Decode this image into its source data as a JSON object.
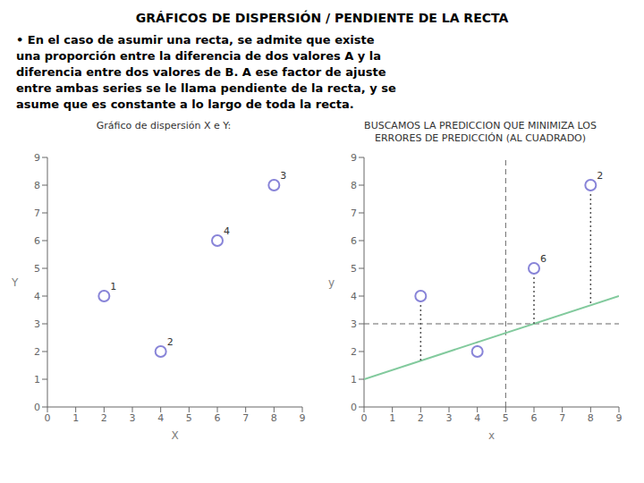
{
  "title": "GRÁFICOS DE DISPERSIÓN / PENDIENTE DE LA RECTA",
  "annotations": [
    "• En el caso de asumir una recta, se admite que existe",
    "una proporción entre la diferencia de dos valores A y la",
    "diferencia entre dos valores de B. A ese factor de ajuste",
    "entre ambas series se le llama pendiente de la recta, y se",
    "asume que es constante a lo largo de toda la recta."
  ],
  "chart_data": [
    {
      "type": "scatter",
      "title": "Gráfico de dispersión X e Y:",
      "x_label": "X",
      "y_label": "Y",
      "xlim": [
        0,
        9
      ],
      "ylim": [
        0,
        9
      ],
      "xticks": [
        0,
        1,
        2,
        3,
        4,
        5,
        6,
        7,
        8,
        9
      ],
      "yticks": [
        0,
        1,
        2,
        3,
        4,
        5,
        6,
        7,
        8,
        9
      ],
      "grid": false,
      "series": [
        {
          "type": "scatter",
          "marker": "circle",
          "x": [
            2,
            4,
            6,
            8
          ],
          "values": [
            4,
            2,
            6,
            8
          ],
          "point_labels": [
            "1",
            "2",
            "4",
            "3"
          ]
        }
      ]
    },
    {
      "type": "scatter",
      "title": "BUSCAMOS LA PREDICCION QUE MINIMIZA LOS",
      "subtitle": "ERRORES DE PREDICCIÓN (AL CUADRADO)",
      "x_label": "x",
      "y_label": "y",
      "xlim": [
        0,
        9
      ],
      "ylim": [
        0,
        9
      ],
      "xticks": [
        0,
        1,
        2,
        3,
        4,
        5,
        6,
        7,
        8,
        9
      ],
      "yticks": [
        0,
        1,
        2,
        3,
        4,
        5,
        6,
        7,
        8,
        9
      ],
      "grid": false,
      "reference_lines": [
        {
          "axis": "y",
          "value": 3,
          "line_style": "dashed"
        },
        {
          "axis": "x",
          "value": 5,
          "line_style": "dashed"
        }
      ],
      "series": [
        {
          "type": "line",
          "line_style": "solid",
          "x": [
            0,
            9
          ],
          "values": [
            1.0,
            4.0
          ]
        },
        {
          "type": "scatter",
          "marker": "circle",
          "x": [
            2,
            4,
            6,
            8
          ],
          "values": [
            4,
            2,
            5,
            8
          ],
          "point_labels": [
            null,
            null,
            "6",
            "2"
          ],
          "error_to": [
            1.6666666666666667,
            2.3333333333333335,
            3,
            3.6666666666666665
          ],
          "error_line_style": "dotted"
        }
      ]
    }
  ]
}
